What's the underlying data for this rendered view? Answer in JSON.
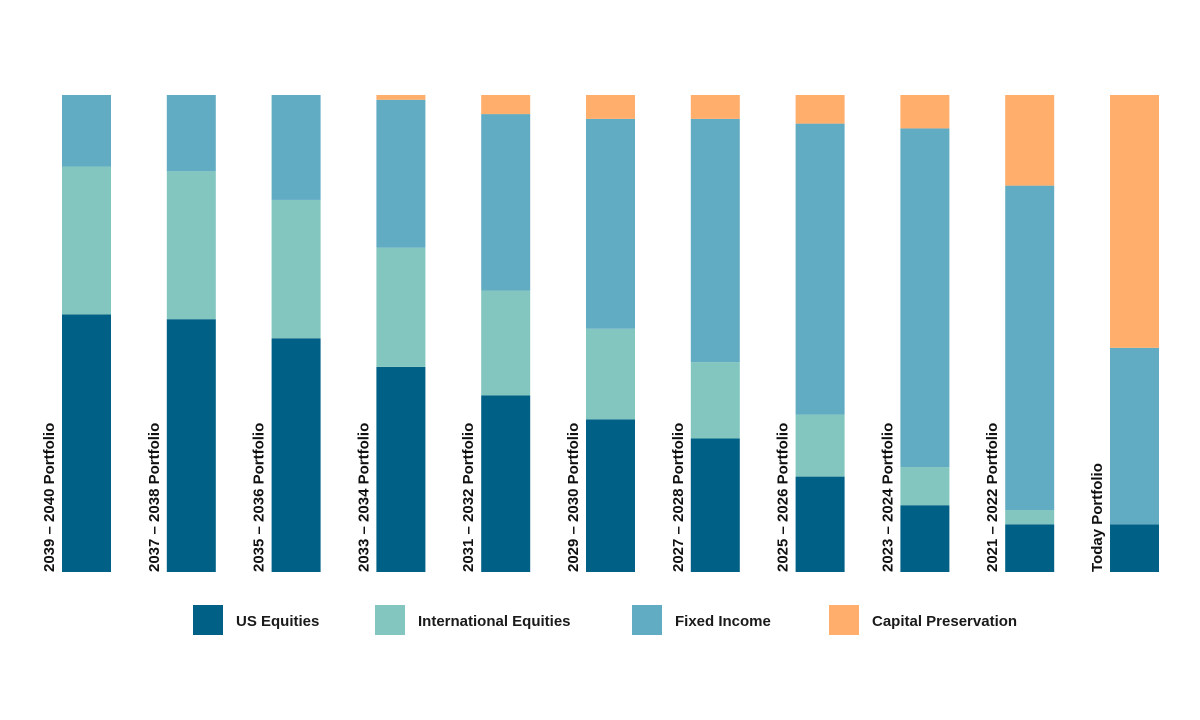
{
  "chart_data": {
    "type": "bar",
    "stacked": true,
    "normalized": true,
    "categories": [
      "2039 – 2040 Portfolio",
      "2037 – 2038 Portfolio",
      "2035 – 2036 Portfolio",
      "2033 – 2034 Portfolio",
      "2031 – 2032 Portfolio",
      "2029 – 2030 Portfolio",
      "2027 – 2028 Portfolio",
      "2025 – 2026 Portfolio",
      "2023 – 2024 Portfolio",
      "2021 – 2022 Portfolio",
      "Today Portfolio"
    ],
    "series": [
      {
        "name": "US Equities",
        "color": "#006086",
        "values": [
          54,
          53,
          49,
          43,
          37,
          32,
          28,
          20,
          14,
          10,
          10
        ]
      },
      {
        "name": "International Equities",
        "color": "#82c6bf",
        "values": [
          31,
          31,
          29,
          25,
          22,
          19,
          16,
          13,
          8,
          3,
          0
        ]
      },
      {
        "name": "Fixed Income",
        "color": "#62acc3",
        "values": [
          15,
          16,
          22,
          31,
          37,
          44,
          51,
          61,
          71,
          68,
          37
        ]
      },
      {
        "name": "Capital Preservation",
        "color": "#ffae6b",
        "values": [
          0,
          0,
          0,
          1,
          4,
          5,
          5,
          6,
          7,
          19,
          53
        ]
      }
    ],
    "ylim": [
      0,
      100
    ],
    "grid": false,
    "legend": "bottom",
    "category_label_orientation": "vertical"
  }
}
